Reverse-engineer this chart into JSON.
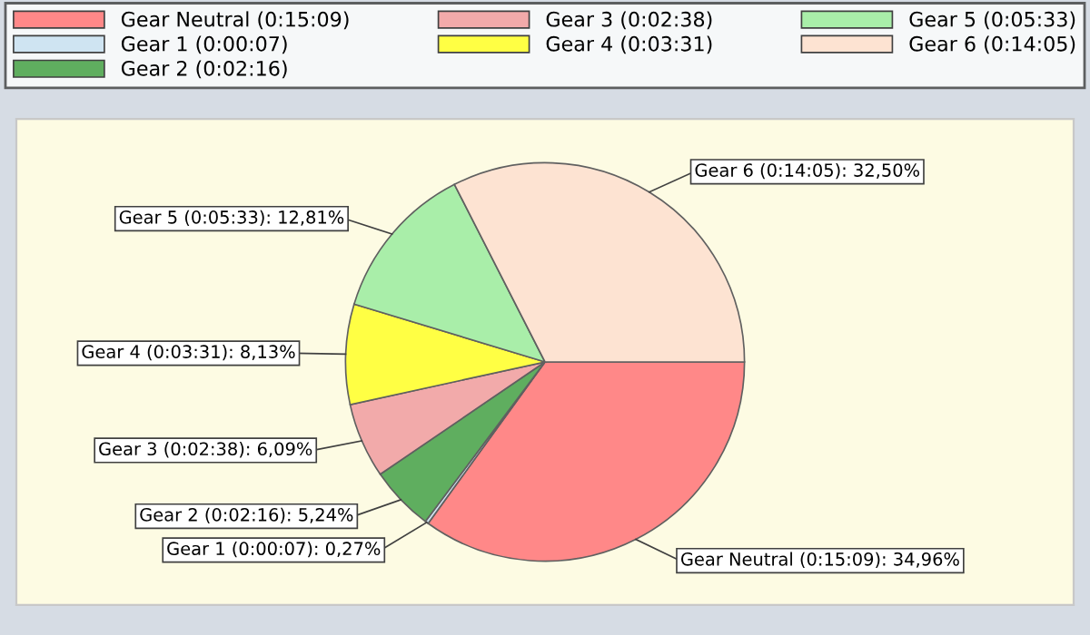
{
  "chart_data": {
    "type": "pie",
    "categories": [
      "Gear Neutral (0:15:09)",
      "Gear 1 (0:00:07)",
      "Gear 2 (0:02:16)",
      "Gear 3 (0:02:38)",
      "Gear 4 (0:03:31)",
      "Gear 5 (0:05:33)",
      "Gear 6 (0:14:05)"
    ],
    "values": [
      34.96,
      0.27,
      5.24,
      6.09,
      8.13,
      12.81,
      32.5
    ],
    "value_labels": [
      "Gear Neutral (0:15:09): 34,96%",
      "Gear 1 (0:00:07): 0,27%",
      "Gear 2 (0:02:16): 5,24%",
      "Gear 3 (0:02:38): 6,09%",
      "Gear 4 (0:03:31): 8,13%",
      "Gear 5 (0:05:33): 12,81%",
      "Gear 6 (0:14:05): 32,50%"
    ],
    "colors": [
      "#ff8888",
      "#cfe4f2",
      "#5fae5f",
      "#f2aaaa",
      "#ffff44",
      "#a9eea9",
      "#fde3d2"
    ],
    "legend": "top"
  }
}
